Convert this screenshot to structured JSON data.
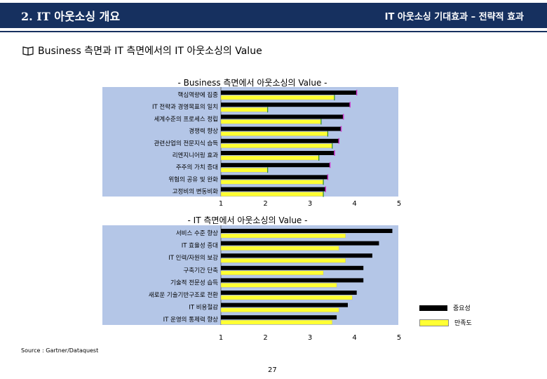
{
  "header": {
    "left": "2. IT 아웃소싱 개요",
    "right": "IT 아웃소싱 기대효과 – 전략적 효과"
  },
  "section_title": "Business 측면과 IT 측면에서의 IT 아웃소싱의 Value",
  "icon": "book-icon",
  "colors": {
    "header": "#16305f",
    "plot_bg": "#b4c6e7",
    "importance": "#000000",
    "satisfaction": "#ffff33",
    "accent": "#cc33cc"
  },
  "chart_data": [
    {
      "type": "bar",
      "title": "- Business 측면에서 아웃소싱의 Value -",
      "categories": [
        "핵심역량에 집중",
        "IT 전략과 경영목표의 일치",
        "세계수준의 프로세스 정립",
        "경쟁력 향상",
        "관련산업의 전문지식 습득",
        "리엔지니어링 효과",
        "주주의 가치 증대",
        "위험의 공유 및 완화",
        "고정비의 변동비화"
      ],
      "series": [
        {
          "name": "중요성",
          "values": [
            4.05,
            3.9,
            3.75,
            3.7,
            3.65,
            3.55,
            3.45,
            3.4,
            3.35
          ]
        },
        {
          "name": "만족도",
          "values": [
            3.55,
            2.05,
            3.25,
            3.4,
            3.5,
            3.2,
            2.05,
            3.3,
            3.3
          ]
        }
      ],
      "x_ticks": [
        "1",
        "2",
        "3",
        "4",
        "5"
      ],
      "xlim": [
        1,
        5
      ]
    },
    {
      "type": "bar",
      "title": "- IT 측면에서 아웃소싱의 Value -",
      "categories": [
        "서비스 수준 향상",
        "IT 효율성 증대",
        "IT 인력/자원의 보강",
        "구축기간 단축",
        "기술적 전문성 습득",
        "새로운 기술기반구조로 전환",
        "IT 비용절감",
        "IT 운영의 통제력 향상"
      ],
      "series": [
        {
          "name": "중요성",
          "values": [
            4.85,
            4.55,
            4.4,
            4.2,
            4.2,
            4.05,
            3.85,
            3.6
          ]
        },
        {
          "name": "만족도",
          "values": [
            3.8,
            3.65,
            3.8,
            3.3,
            3.6,
            3.95,
            3.65,
            3.5
          ]
        }
      ],
      "x_ticks": [
        "1",
        "2",
        "3",
        "4",
        "5"
      ],
      "xlim": [
        1,
        5
      ]
    }
  ],
  "legend": {
    "importance": "중요성",
    "satisfaction": "만족도"
  },
  "source": "Source : Gartner/Dataquest",
  "page_number": "27"
}
